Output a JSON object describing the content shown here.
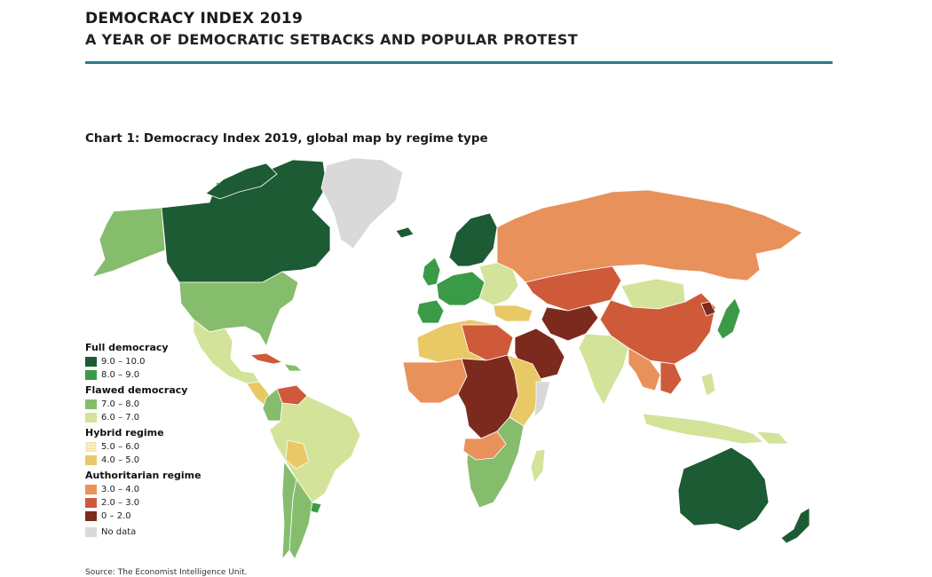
{
  "header": {
    "title": "DEMOCRACY INDEX 2019",
    "subtitle": "A YEAR OF DEMOCRATIC SETBACKS AND POPULAR PROTEST"
  },
  "chart": {
    "title": "Chart 1: Democracy Index 2019, global map by regime type"
  },
  "legend": {
    "groups": [
      {
        "title": "Full democracy",
        "items": [
          {
            "label": "9.0 – 10.0",
            "color": "#1d5b34"
          },
          {
            "label": "8.0 – 9.0",
            "color": "#3a9a47"
          }
        ]
      },
      {
        "title": "Flawed democracy",
        "items": [
          {
            "label": "7.0 – 8.0",
            "color": "#86bd6c"
          },
          {
            "label": "6.0 – 7.0",
            "color": "#d3e39a"
          }
        ]
      },
      {
        "title": "Hybrid regime",
        "items": [
          {
            "label": "5.0 – 6.0",
            "color": "#f1e1a0"
          },
          {
            "label": "4.0 – 5.0",
            "color": "#e9c866"
          }
        ]
      },
      {
        "title": "Authoritarian regime",
        "items": [
          {
            "label": "3.0 – 4.0",
            "color": "#e9915a"
          },
          {
            "label": "2.0 – 3.0",
            "color": "#cf5a3a"
          },
          {
            "label": "0 – 2.0",
            "color": "#7d2a1e"
          }
        ]
      }
    ],
    "no_data": {
      "label": "No data",
      "color": "#d9d9d9"
    }
  },
  "source": "Source: The Economist Intelligence Unit."
}
